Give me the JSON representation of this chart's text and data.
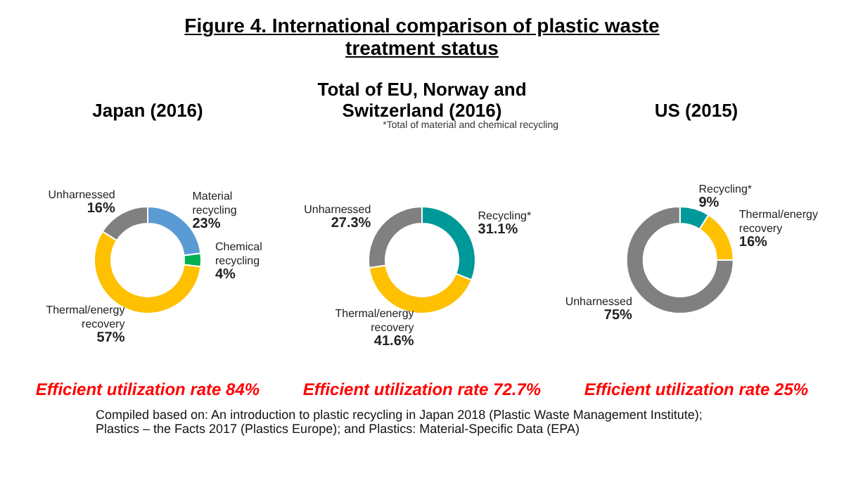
{
  "chart_data": [
    {
      "type": "other",
      "title": "Figure 4. International comparison of plastic waste treatment status",
      "annotations": [
        "Compiled based on: An introduction to plastic recycling in Japan 2018 (Plastic Waste Management Institute); Plastics – the Facts 2017 (Plastics Europe); and Plastics: Material-Specific Data (EPA)"
      ]
    },
    {
      "type": "donut",
      "title": "Japan (2016)",
      "categories": [
        "Material recycling",
        "Chemical recycling",
        "Thermal/energy recovery",
        "Unharnessed"
      ],
      "values": [
        23,
        4,
        57,
        16
      ],
      "value_labels": [
        "23%",
        "4%",
        "57%",
        "16%"
      ],
      "colors": [
        "#5b9bd5",
        "#00b050",
        "#ffc000",
        "#808080"
      ],
      "annotations": [
        "Efficient utilization rate 84%"
      ],
      "legend": false
    },
    {
      "type": "donut",
      "title": "Total of EU, Norway and Switzerland (2016)",
      "categories": [
        "Recycling*",
        "Thermal/energy recovery",
        "Unharnessed"
      ],
      "values": [
        31.1,
        41.6,
        27.3
      ],
      "value_labels": [
        "31.1%",
        "41.6%",
        "27.3%"
      ],
      "colors": [
        "#009999",
        "#ffc000",
        "#808080"
      ],
      "annotations": [
        "*Total of material and chemical recycling",
        "Efficient utilization rate 72.7%"
      ],
      "legend": false
    },
    {
      "type": "donut",
      "title": "US (2015)",
      "categories": [
        "Recycling*",
        "Thermal/energy recovery",
        "Unharnessed"
      ],
      "values": [
        9,
        16,
        75
      ],
      "value_labels": [
        "9%",
        "16%",
        "75%"
      ],
      "colors": [
        "#009999",
        "#ffc000",
        "#808080"
      ],
      "annotations": [
        "Efficient utilization rate 25%"
      ],
      "legend": false
    }
  ]
}
